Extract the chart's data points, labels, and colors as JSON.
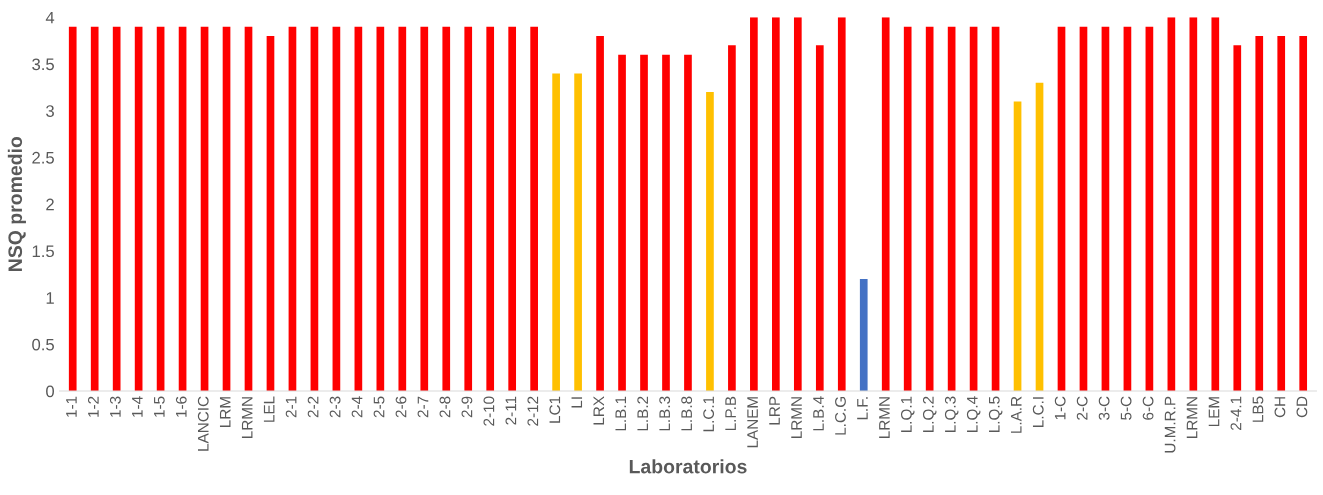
{
  "chart_data": {
    "type": "bar",
    "xlabel": "Laboratorios",
    "ylabel": "NSQ promedio",
    "categories": [
      "1-1",
      "1-2",
      "1-3",
      "1-4",
      "1-5",
      "1-6",
      "LANCIC",
      "LRM",
      "LRMN",
      "LEL",
      "2-1",
      "2-2",
      "2-3",
      "2-4",
      "2-5",
      "2-6",
      "2-7",
      "2-8",
      "2-9",
      "2-10",
      "2-11",
      "2-12",
      "LC1",
      "LI",
      "LRX",
      "L.B.1",
      "L.B.2",
      "L.B.3",
      "L.B.8",
      "L.C.1",
      "L.P.B",
      "LANEM",
      "LRP",
      "LRMN",
      "L.B.4",
      "L.C.G",
      "L.F.",
      "LRMN",
      "L.Q.1",
      "L.Q.2",
      "L.Q.3",
      "L.Q.4",
      "L.Q.5",
      "L.A.R",
      "L.C.I",
      "1-C",
      "2-C",
      "3-C",
      "5-C",
      "6-C",
      "U.M.R.P",
      "LRMN",
      "LEM",
      "2-4.1",
      "LB5",
      "CH",
      "CD"
    ],
    "values": [
      3.9,
      3.9,
      3.9,
      3.9,
      3.9,
      3.9,
      3.9,
      3.9,
      3.9,
      3.8,
      3.9,
      3.9,
      3.9,
      3.9,
      3.9,
      3.9,
      3.9,
      3.9,
      3.9,
      3.9,
      3.9,
      3.9,
      3.4,
      3.4,
      3.8,
      3.6,
      3.6,
      3.6,
      3.6,
      3.2,
      3.7,
      4,
      4,
      4,
      3.7,
      4,
      1.2,
      4,
      3.9,
      3.9,
      3.9,
      3.9,
      3.9,
      3.1,
      3.3,
      3.9,
      3.9,
      3.9,
      3.9,
      3.9,
      4,
      4,
      4,
      3.7,
      3.8,
      3.8,
      3.8
    ],
    "colors": [
      "#ff0000",
      "#ff0000",
      "#ff0000",
      "#ff0000",
      "#ff0000",
      "#ff0000",
      "#ff0000",
      "#ff0000",
      "#ff0000",
      "#ff0000",
      "#ff0000",
      "#ff0000",
      "#ff0000",
      "#ff0000",
      "#ff0000",
      "#ff0000",
      "#ff0000",
      "#ff0000",
      "#ff0000",
      "#ff0000",
      "#ff0000",
      "#ff0000",
      "#ffc000",
      "#ffc000",
      "#ff0000",
      "#ff0000",
      "#ff0000",
      "#ff0000",
      "#ff0000",
      "#ffc000",
      "#ff0000",
      "#ff0000",
      "#ff0000",
      "#ff0000",
      "#ff0000",
      "#ff0000",
      "#4472c4",
      "#ff0000",
      "#ff0000",
      "#ff0000",
      "#ff0000",
      "#ff0000",
      "#ff0000",
      "#ffc000",
      "#ffc000",
      "#ff0000",
      "#ff0000",
      "#ff0000",
      "#ff0000",
      "#ff0000",
      "#ff0000",
      "#ff0000",
      "#ff0000",
      "#ff0000",
      "#ff0000",
      "#ff0000",
      "#ff0000"
    ],
    "ylim": [
      0,
      4
    ],
    "yticks": [
      0,
      0.5,
      1,
      1.5,
      2,
      2.5,
      3,
      3.5,
      4
    ],
    "grid": false,
    "legend": false
  }
}
